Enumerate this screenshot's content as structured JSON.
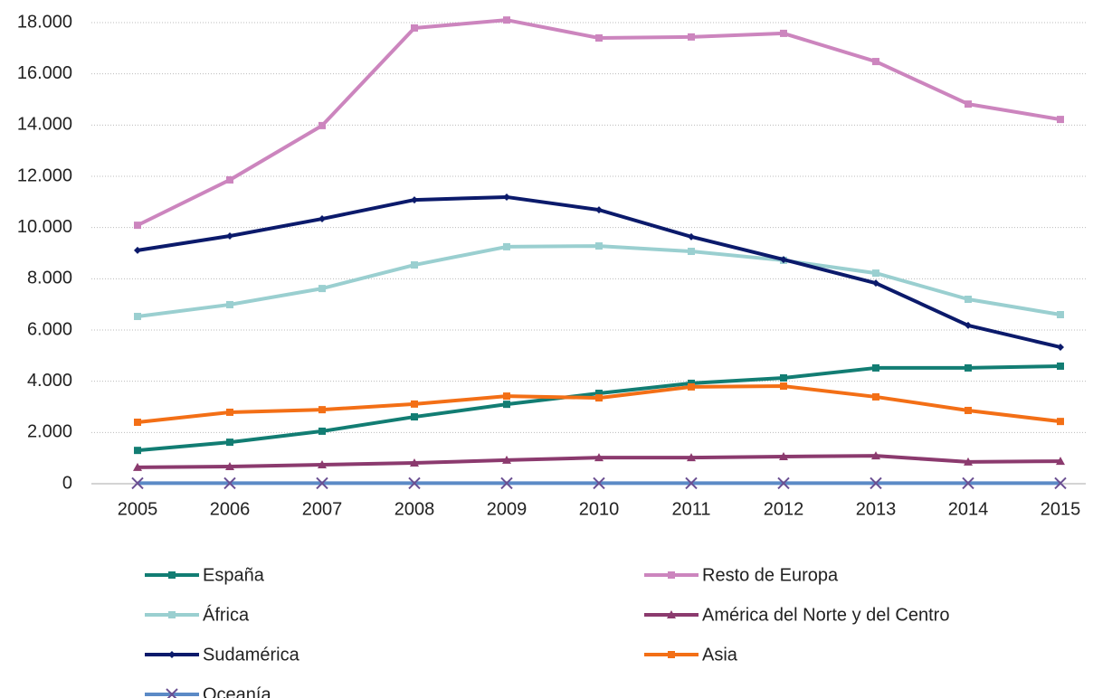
{
  "chart_data": {
    "type": "line",
    "categories": [
      "2005",
      "2006",
      "2007",
      "2008",
      "2009",
      "2010",
      "2011",
      "2012",
      "2013",
      "2014",
      "2015"
    ],
    "ylim": [
      0,
      18000
    ],
    "yticks": [
      0,
      {
        "value": 2000,
        "label": "2.000"
      },
      {
        "value": 4000,
        "label": "4.000"
      },
      {
        "value": 6000,
        "label": "6.000"
      },
      {
        "value": 8000,
        "label": "8.000"
      },
      {
        "value": 10000,
        "label": "10.000"
      },
      {
        "value": 12000,
        "label": "12.000"
      },
      {
        "value": 14000,
        "label": "14.000"
      },
      {
        "value": 16000,
        "label": "16.000"
      },
      {
        "value": 18000,
        "label": "18.000"
      }
    ],
    "grid": true,
    "legend": "bottom",
    "series": [
      {
        "name": "España",
        "color": "#127d73",
        "marker": "square",
        "values": [
          1300,
          1620,
          2050,
          2610,
          3100,
          3530,
          3920,
          4130,
          4520,
          4520,
          4590
        ]
      },
      {
        "name": "Resto de Europa",
        "color": "#cc85be",
        "marker": "square",
        "values": [
          10090,
          11860,
          13980,
          17790,
          18100,
          17400,
          17440,
          17580,
          16480,
          14820,
          14220
        ]
      },
      {
        "name": "África",
        "color": "#9acfd0",
        "marker": "square",
        "values": [
          6530,
          6990,
          7620,
          8540,
          9250,
          9280,
          9070,
          8720,
          8220,
          7200,
          6600
        ]
      },
      {
        "name": "América del Norte y del Centro",
        "color": "#8b3a6e",
        "marker": "triangle",
        "values": [
          640,
          670,
          740,
          810,
          920,
          1020,
          1020,
          1060,
          1090,
          850,
          880
        ]
      },
      {
        "name": "Sudamérica",
        "color": "#0b1a6b",
        "marker": "diamond",
        "values": [
          9110,
          9670,
          10340,
          11080,
          11190,
          10690,
          9640,
          8750,
          7830,
          6180,
          5330
        ]
      },
      {
        "name": "Asia",
        "color": "#f36f16",
        "marker": "square",
        "values": [
          2400,
          2790,
          2890,
          3110,
          3420,
          3350,
          3780,
          3810,
          3390,
          2860,
          2430
        ]
      },
      {
        "name": "Oceanía",
        "color": "#5b8ac6",
        "marker": "cross",
        "values": [
          20,
          20,
          20,
          20,
          20,
          20,
          20,
          20,
          20,
          20,
          20
        ]
      }
    ]
  }
}
